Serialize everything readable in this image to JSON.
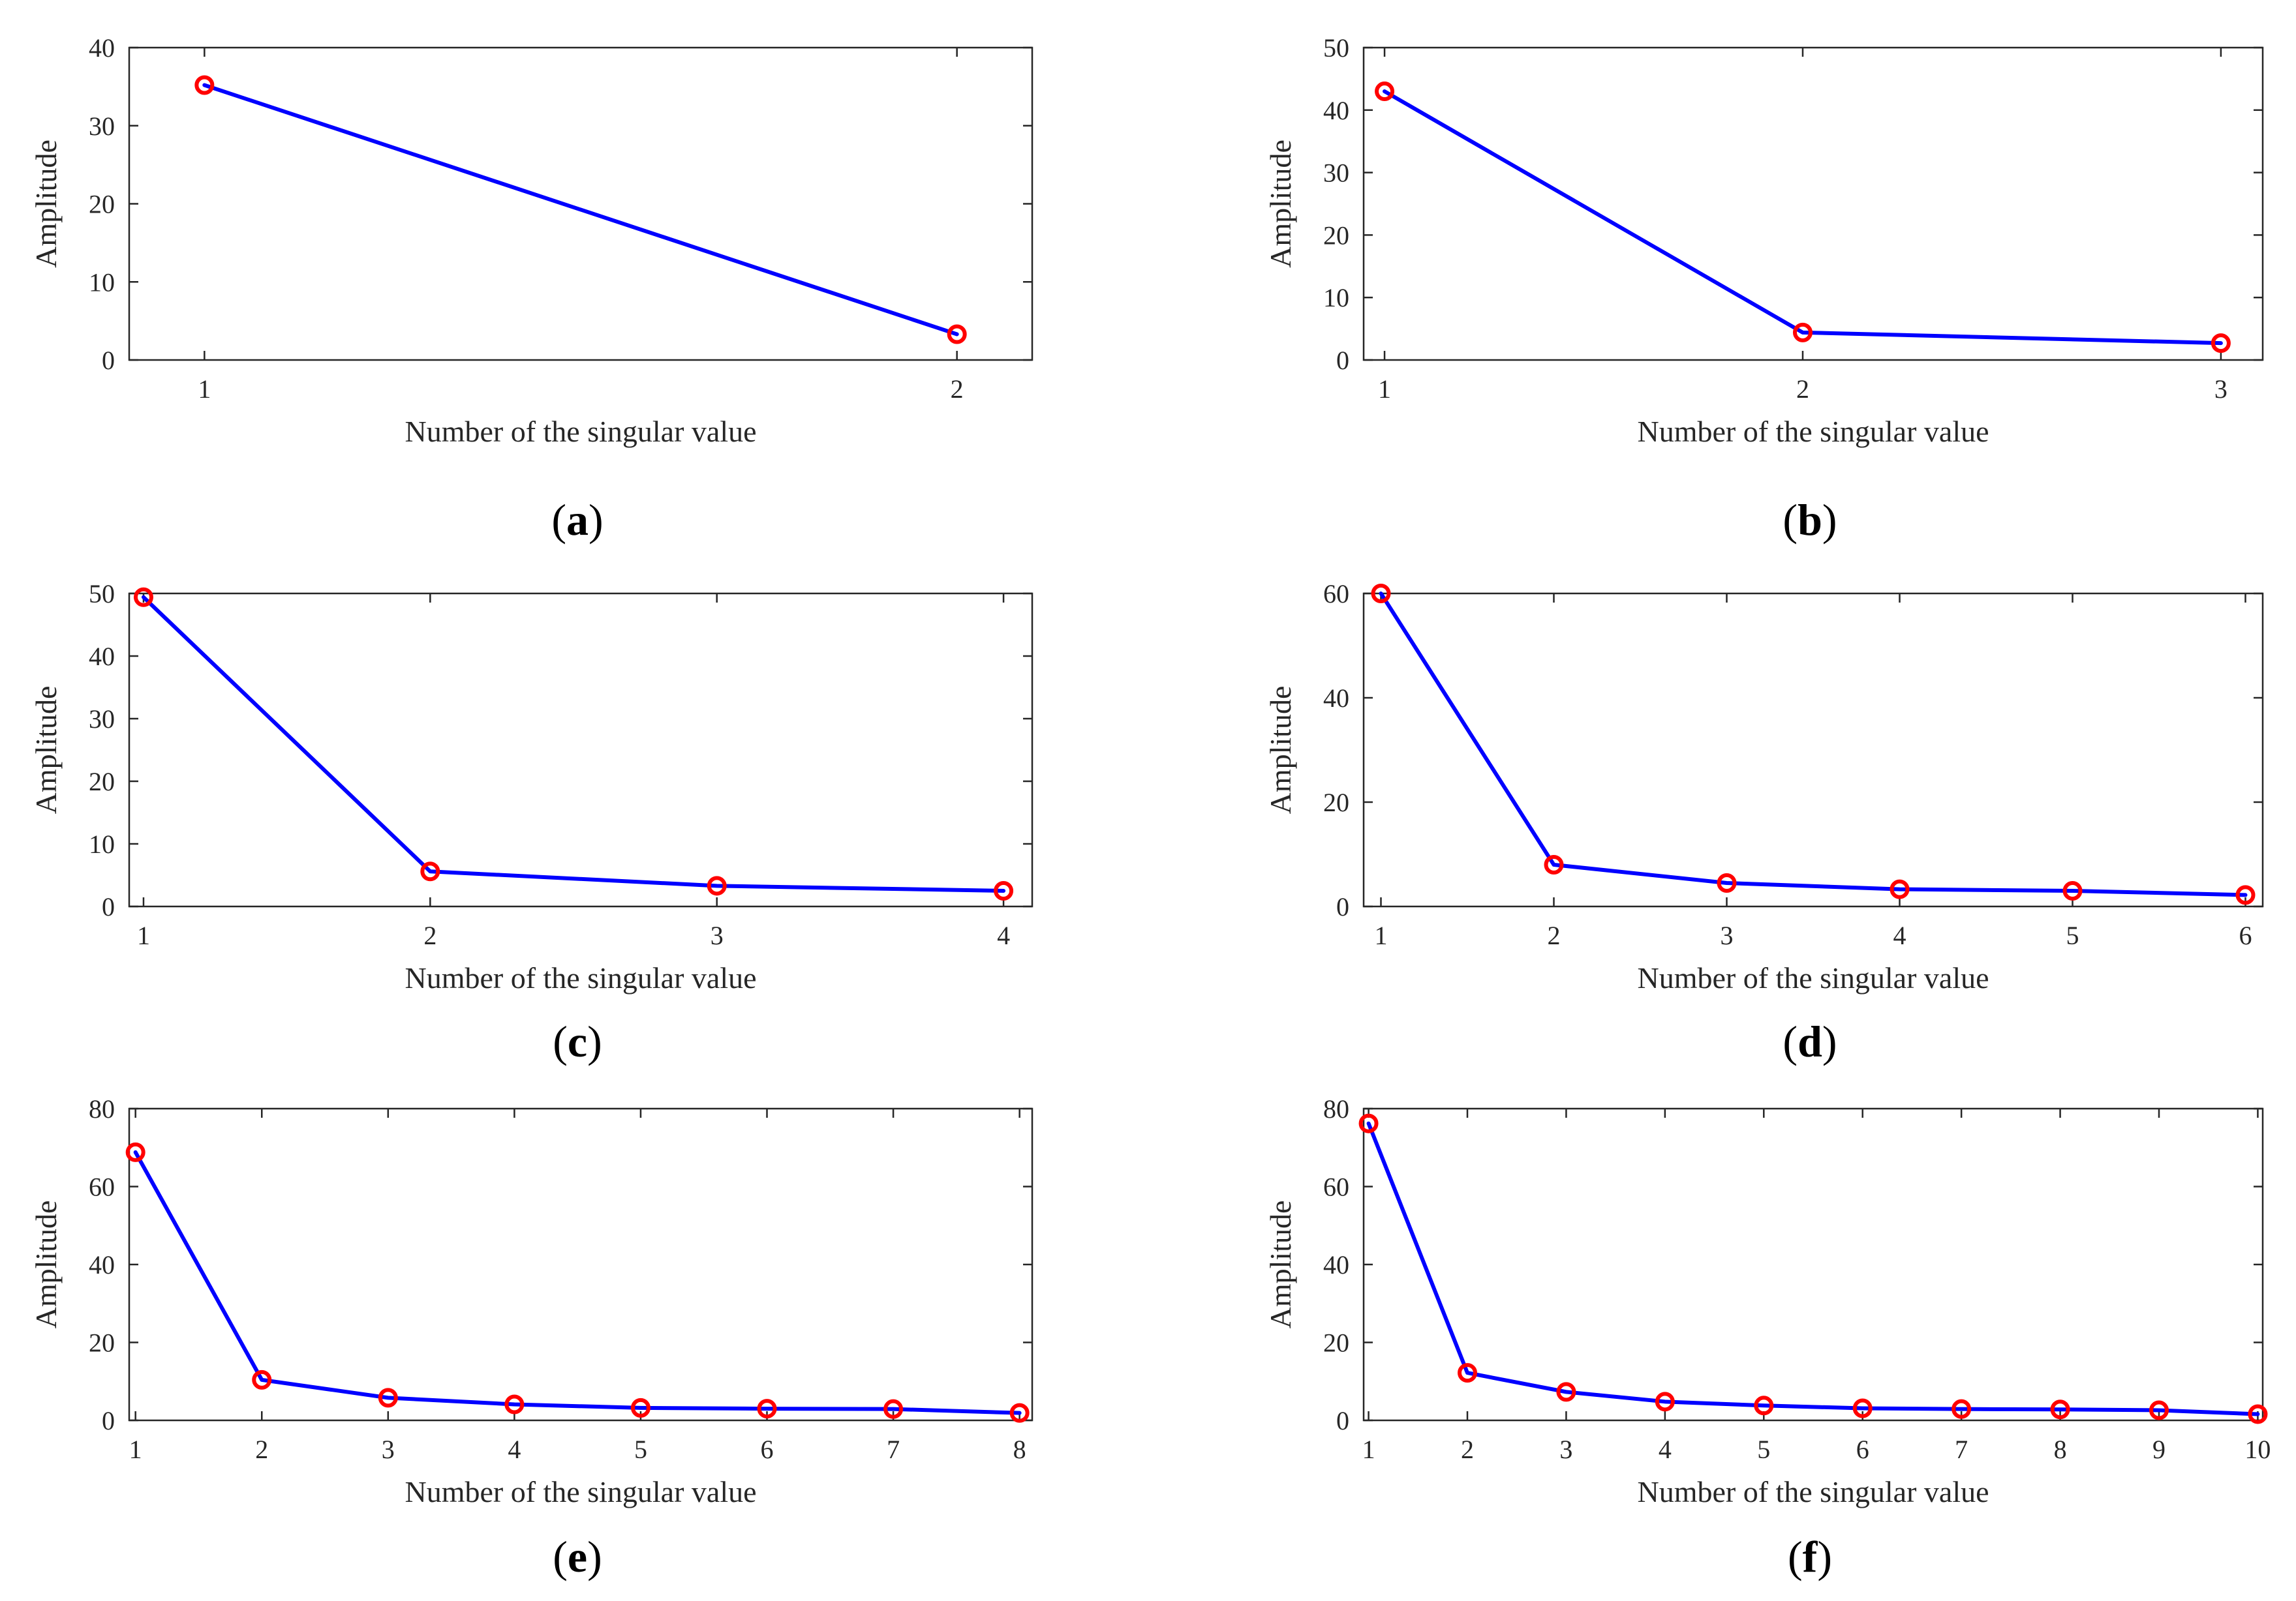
{
  "colors": {
    "line": "#0000ff",
    "marker": "#ff0000",
    "axis": "#262626"
  },
  "chart_data": [
    {
      "type": "line",
      "panel": "a",
      "xlabel": "Number of the singular value",
      "ylabel": "Amplitude",
      "x": [
        1,
        2
      ],
      "values": [
        35.2,
        3.3
      ],
      "xticks": [
        1,
        2
      ],
      "xlim": [
        0.9,
        2.1
      ],
      "ylim": [
        0,
        40
      ],
      "yticks": [
        0,
        10,
        20,
        30,
        40
      ]
    },
    {
      "type": "line",
      "panel": "b",
      "xlabel": "Number of the singular value",
      "ylabel": "Amplitude",
      "x": [
        1,
        2,
        3
      ],
      "values": [
        43.0,
        4.4,
        2.7
      ],
      "xticks": [
        1,
        2,
        3
      ],
      "xlim": [
        0.95,
        3.1
      ],
      "ylim": [
        0,
        50
      ],
      "yticks": [
        0,
        10,
        20,
        30,
        40,
        50
      ]
    },
    {
      "type": "line",
      "panel": "c",
      "xlabel": "Number of the singular value",
      "ylabel": "Amplitude",
      "x": [
        1,
        2,
        3,
        4
      ],
      "values": [
        49.4,
        5.6,
        3.3,
        2.5
      ],
      "xticks": [
        1,
        2,
        3,
        4
      ],
      "xlim": [
        0.95,
        4.1
      ],
      "ylim": [
        0,
        50
      ],
      "yticks": [
        0,
        10,
        20,
        30,
        40,
        50
      ]
    },
    {
      "type": "line",
      "panel": "d",
      "xlabel": "Number of the singular value",
      "ylabel": "Amplitude",
      "x": [
        1,
        2,
        3,
        4,
        5,
        6
      ],
      "values": [
        60.0,
        8.0,
        4.5,
        3.3,
        3.0,
        2.2
      ],
      "xticks": [
        1,
        2,
        3,
        4,
        5,
        6
      ],
      "xlim": [
        0.9,
        6.1
      ],
      "ylim": [
        0,
        60
      ],
      "yticks": [
        0,
        20,
        40,
        60
      ]
    },
    {
      "type": "line",
      "panel": "e",
      "xlabel": "Number of the singular value",
      "ylabel": "Amplitude",
      "x": [
        1,
        2,
        3,
        4,
        5,
        6,
        7,
        8
      ],
      "values": [
        68.8,
        10.4,
        5.8,
        4.1,
        3.2,
        3.0,
        2.9,
        1.9
      ],
      "xticks": [
        1,
        2,
        3,
        4,
        5,
        6,
        7,
        8
      ],
      "xlim": [
        0.95,
        8.1
      ],
      "ylim": [
        0,
        80
      ],
      "yticks": [
        0,
        20,
        40,
        60,
        80
      ]
    },
    {
      "type": "line",
      "panel": "f",
      "xlabel": "Number of the singular value",
      "ylabel": "Amplitude",
      "x": [
        1,
        2,
        3,
        4,
        5,
        6,
        7,
        8,
        9,
        10
      ],
      "values": [
        76.2,
        12.2,
        7.3,
        4.8,
        3.8,
        3.1,
        2.9,
        2.8,
        2.6,
        1.6
      ],
      "xticks": [
        1,
        2,
        3,
        4,
        5,
        6,
        7,
        8,
        9,
        10
      ],
      "xlim": [
        0.95,
        10.05
      ],
      "ylim": [
        0,
        80
      ],
      "yticks": [
        0,
        20,
        40,
        60,
        80
      ]
    }
  ]
}
